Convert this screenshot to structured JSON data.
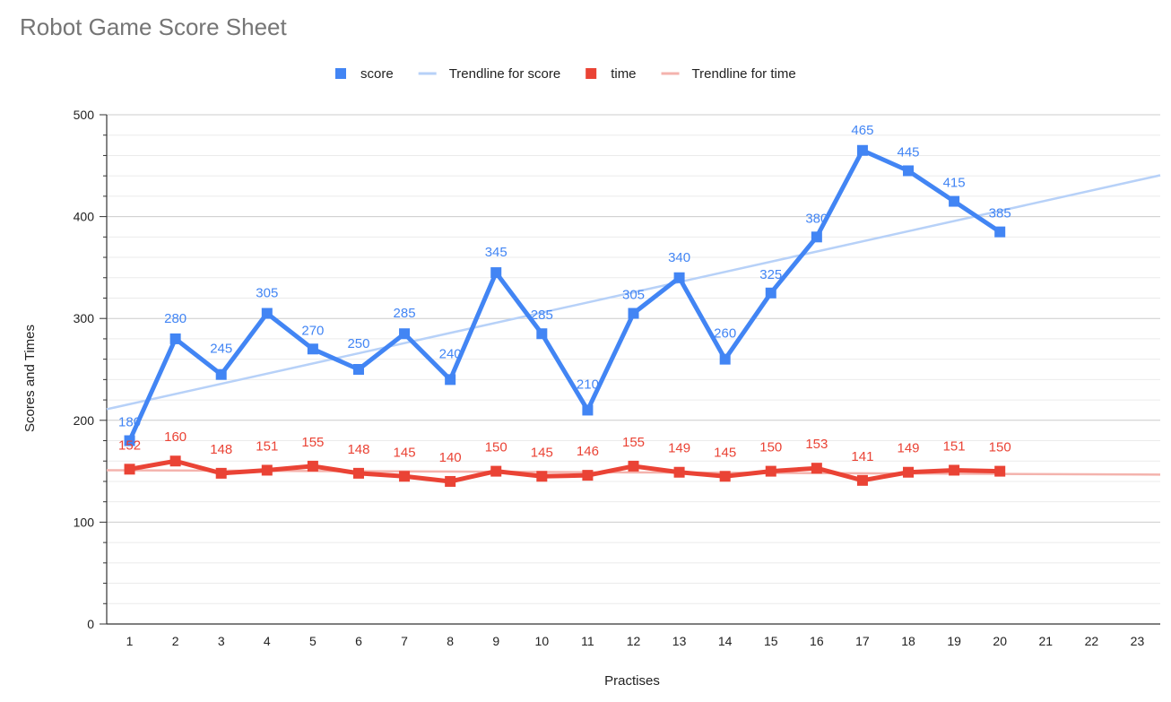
{
  "chart_data": {
    "type": "line",
    "title": "Robot Game Score Sheet",
    "xlabel": "Practises",
    "ylabel": "Scores and Times",
    "ylim": [
      0,
      500
    ],
    "xlim": [
      0.5,
      23.5
    ],
    "y_ticks": [
      0,
      100,
      200,
      300,
      400,
      500
    ],
    "x_ticks": [
      1,
      2,
      3,
      4,
      5,
      6,
      7,
      8,
      9,
      10,
      11,
      12,
      13,
      14,
      15,
      16,
      17,
      18,
      19,
      20,
      21,
      22,
      23
    ],
    "grid": true,
    "legend_position": "top",
    "x": [
      1,
      2,
      3,
      4,
      5,
      6,
      7,
      8,
      9,
      10,
      11,
      12,
      13,
      14,
      15,
      16,
      17,
      18,
      19,
      20
    ],
    "series": [
      {
        "name": "score",
        "color": "#4285F4",
        "marker": "square",
        "data_labels": true,
        "values": [
          180,
          280,
          245,
          305,
          270,
          250,
          285,
          240,
          345,
          285,
          210,
          305,
          340,
          260,
          325,
          380,
          465,
          445,
          415,
          385
        ]
      },
      {
        "name": "time",
        "color": "#EA4335",
        "marker": "square",
        "data_labels": true,
        "values": [
          152,
          160,
          148,
          151,
          155,
          148,
          145,
          140,
          150,
          145,
          146,
          155,
          149,
          145,
          150,
          153,
          141,
          149,
          151,
          150
        ]
      }
    ],
    "trendlines": [
      {
        "name": "Trendline for score",
        "color": "#B7D1F8",
        "type": "linear",
        "of": "score"
      },
      {
        "name": "Trendline for time",
        "color": "#F4B3AD",
        "type": "linear",
        "of": "time"
      }
    ]
  }
}
